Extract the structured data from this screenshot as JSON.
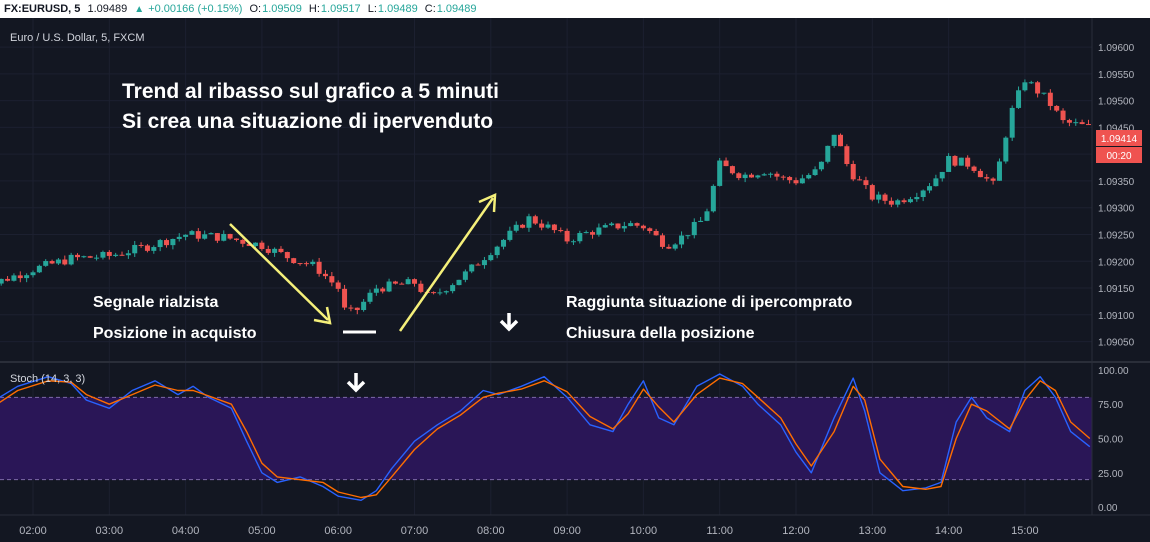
{
  "header": {
    "symbol": "FX:EURUSD, 5",
    "last": "1.09489",
    "change": "+0.00166 (+0.15%)",
    "o_label": "O:",
    "open": "1.09509",
    "h_label": "H:",
    "high": "1.09517",
    "l_label": "L:",
    "low": "1.09489",
    "c_label": "C:",
    "close": "1.09489"
  },
  "chart_title": "Euro / U.S. Dollar, 5, FXCM",
  "indicator_title": "Stoch (14, 3, 3)",
  "annotations": {
    "headline1": "Trend al ribasso sul grafico a 5 minuti",
    "headline2": "Si crea una situazione di ipervenduto",
    "buy1": "Segnale rialzista",
    "buy2": "Posizione in acquisto",
    "sell1": "Raggiunta situazione di ipercomprato",
    "sell2": "Chiusura della posizione"
  },
  "price_badge": "1.09414",
  "timer_badge": "00:20",
  "colors": {
    "up": "#26a69a",
    "down": "#ef5350",
    "background": "#131722",
    "arrow": "#f5f07a",
    "stoch_band": "#2a1657",
    "k_line": "#2962ff",
    "d_line": "#ff6d00"
  },
  "chart_data": [
    {
      "type": "candlestick",
      "x_ticks": [
        "02:00",
        "03:00",
        "04:00",
        "05:00",
        "06:00",
        "07:00",
        "08:00",
        "09:00",
        "10:00",
        "11:00",
        "12:00",
        "13:00",
        "14:00",
        "15:00"
      ],
      "y_ticks": [
        "1.09600",
        "1.09550",
        "1.09500",
        "1.09450",
        "1.09400",
        "1.09350",
        "1.09300",
        "1.09250",
        "1.09200",
        "1.09150",
        "1.09100",
        "1.09050"
      ],
      "ylim": [
        1.0901,
        1.0963
      ],
      "close_path": [
        [
          1.25,
          1.09145
        ],
        [
          1.5,
          1.0916
        ],
        [
          2.0,
          1.09185
        ],
        [
          2.5,
          1.09205
        ],
        [
          3.0,
          1.0921
        ],
        [
          3.5,
          1.09228
        ],
        [
          4.0,
          1.0925
        ],
        [
          4.5,
          1.09245
        ],
        [
          5.0,
          1.0923
        ],
        [
          5.3,
          1.0921
        ],
        [
          5.7,
          1.0919
        ],
        [
          6.0,
          1.0915
        ],
        [
          6.1,
          1.091
        ],
        [
          6.25,
          1.0911
        ],
        [
          6.5,
          1.0915
        ],
        [
          7.0,
          1.0916
        ],
        [
          7.2,
          1.0913
        ],
        [
          7.5,
          1.0916
        ],
        [
          7.7,
          1.0918
        ],
        [
          8.0,
          1.0922
        ],
        [
          8.5,
          1.0928
        ],
        [
          8.8,
          1.0926
        ],
        [
          9.0,
          1.0924
        ],
        [
          9.3,
          1.09255
        ],
        [
          9.8,
          1.0927
        ],
        [
          10.0,
          1.09265
        ],
        [
          10.3,
          1.0923
        ],
        [
          10.5,
          1.09245
        ],
        [
          10.8,
          1.0928
        ],
        [
          11.0,
          1.0938
        ],
        [
          11.3,
          1.0936
        ],
        [
          11.6,
          1.0937
        ],
        [
          11.8,
          1.09355
        ],
        [
          12.0,
          1.0935
        ],
        [
          12.3,
          1.0937
        ],
        [
          12.5,
          1.0944
        ],
        [
          12.7,
          1.0937
        ],
        [
          13.0,
          1.0932
        ],
        [
          13.3,
          1.0931
        ],
        [
          13.6,
          1.0933
        ],
        [
          13.8,
          1.0935
        ],
        [
          14.0,
          1.0939
        ],
        [
          14.3,
          1.0938
        ],
        [
          14.6,
          1.0934
        ],
        [
          14.8,
          1.0947
        ],
        [
          15.0,
          1.0954
        ],
        [
          15.3,
          1.095
        ],
        [
          15.5,
          1.0946
        ],
        [
          15.85,
          1.0945
        ]
      ]
    },
    {
      "type": "line",
      "title": "Stoch (14, 3, 3)",
      "y_ticks": [
        "100.00",
        "75.00",
        "50.00",
        "25.00",
        "0.00"
      ],
      "ylim": [
        -5,
        105
      ],
      "bands": [
        20,
        80
      ],
      "series": [
        {
          "values": [
            [
              1.25,
              62
            ],
            [
              1.5,
              78
            ],
            [
              1.8,
              88
            ],
            [
              2.2,
              95
            ],
            [
              2.5,
              90
            ],
            [
              2.7,
              78
            ],
            [
              3.0,
              72
            ],
            [
              3.3,
              85
            ],
            [
              3.6,
              92
            ],
            [
              3.9,
              82
            ],
            [
              4.1,
              88
            ],
            [
              4.3,
              80
            ],
            [
              4.6,
              72
            ],
            [
              4.8,
              48
            ],
            [
              5.0,
              25
            ],
            [
              5.2,
              18
            ],
            [
              5.5,
              22
            ],
            [
              5.8,
              15
            ],
            [
              6.0,
              8
            ],
            [
              6.3,
              5
            ],
            [
              6.5,
              12
            ],
            [
              6.7,
              28
            ],
            [
              7.0,
              48
            ],
            [
              7.3,
              60
            ],
            [
              7.6,
              70
            ],
            [
              7.9,
              85
            ],
            [
              8.1,
              82
            ],
            [
              8.4,
              88
            ],
            [
              8.7,
              95
            ],
            [
              9.0,
              80
            ],
            [
              9.3,
              60
            ],
            [
              9.6,
              55
            ],
            [
              9.8,
              75
            ],
            [
              10.0,
              92
            ],
            [
              10.2,
              65
            ],
            [
              10.4,
              60
            ],
            [
              10.7,
              88
            ],
            [
              11.0,
              97
            ],
            [
              11.3,
              88
            ],
            [
              11.5,
              75
            ],
            [
              11.8,
              60
            ],
            [
              12.0,
              40
            ],
            [
              12.2,
              25
            ],
            [
              12.5,
              65
            ],
            [
              12.75,
              94
            ],
            [
              12.9,
              70
            ],
            [
              13.1,
              25
            ],
            [
              13.4,
              12
            ],
            [
              13.7,
              14
            ],
            [
              13.9,
              18
            ],
            [
              14.1,
              62
            ],
            [
              14.3,
              80
            ],
            [
              14.5,
              65
            ],
            [
              14.8,
              55
            ],
            [
              15.0,
              85
            ],
            [
              15.2,
              95
            ],
            [
              15.4,
              80
            ],
            [
              15.6,
              55
            ],
            [
              15.85,
              44
            ]
          ]
        },
        {
          "values": [
            [
              1.25,
              66
            ],
            [
              1.5,
              74
            ],
            [
              1.8,
              85
            ],
            [
              2.2,
              92
            ],
            [
              2.5,
              91
            ],
            [
              2.7,
              82
            ],
            [
              3.0,
              75
            ],
            [
              3.3,
              82
            ],
            [
              3.6,
              89
            ],
            [
              3.9,
              85
            ],
            [
              4.1,
              85
            ],
            [
              4.3,
              81
            ],
            [
              4.6,
              75
            ],
            [
              4.8,
              55
            ],
            [
              5.0,
              32
            ],
            [
              5.2,
              22
            ],
            [
              5.5,
              20
            ],
            [
              5.8,
              18
            ],
            [
              6.0,
              11
            ],
            [
              6.3,
              7
            ],
            [
              6.5,
              9
            ],
            [
              6.7,
              22
            ],
            [
              7.0,
              42
            ],
            [
              7.3,
              57
            ],
            [
              7.6,
              67
            ],
            [
              7.9,
              80
            ],
            [
              8.1,
              83
            ],
            [
              8.4,
              86
            ],
            [
              8.7,
              92
            ],
            [
              9.0,
              84
            ],
            [
              9.3,
              66
            ],
            [
              9.6,
              57
            ],
            [
              9.8,
              68
            ],
            [
              10.0,
              86
            ],
            [
              10.2,
              73
            ],
            [
              10.4,
              62
            ],
            [
              10.7,
              82
            ],
            [
              11.0,
              94
            ],
            [
              11.3,
              90
            ],
            [
              11.5,
              80
            ],
            [
              11.8,
              65
            ],
            [
              12.0,
              46
            ],
            [
              12.2,
              30
            ],
            [
              12.5,
              55
            ],
            [
              12.75,
              88
            ],
            [
              12.9,
              78
            ],
            [
              13.1,
              35
            ],
            [
              13.4,
              15
            ],
            [
              13.7,
              13
            ],
            [
              13.9,
              15
            ],
            [
              14.1,
              50
            ],
            [
              14.3,
              75
            ],
            [
              14.5,
              70
            ],
            [
              14.8,
              57
            ],
            [
              15.0,
              78
            ],
            [
              15.2,
              92
            ],
            [
              15.4,
              85
            ],
            [
              15.6,
              62
            ],
            [
              15.85,
              50
            ]
          ]
        }
      ]
    }
  ]
}
